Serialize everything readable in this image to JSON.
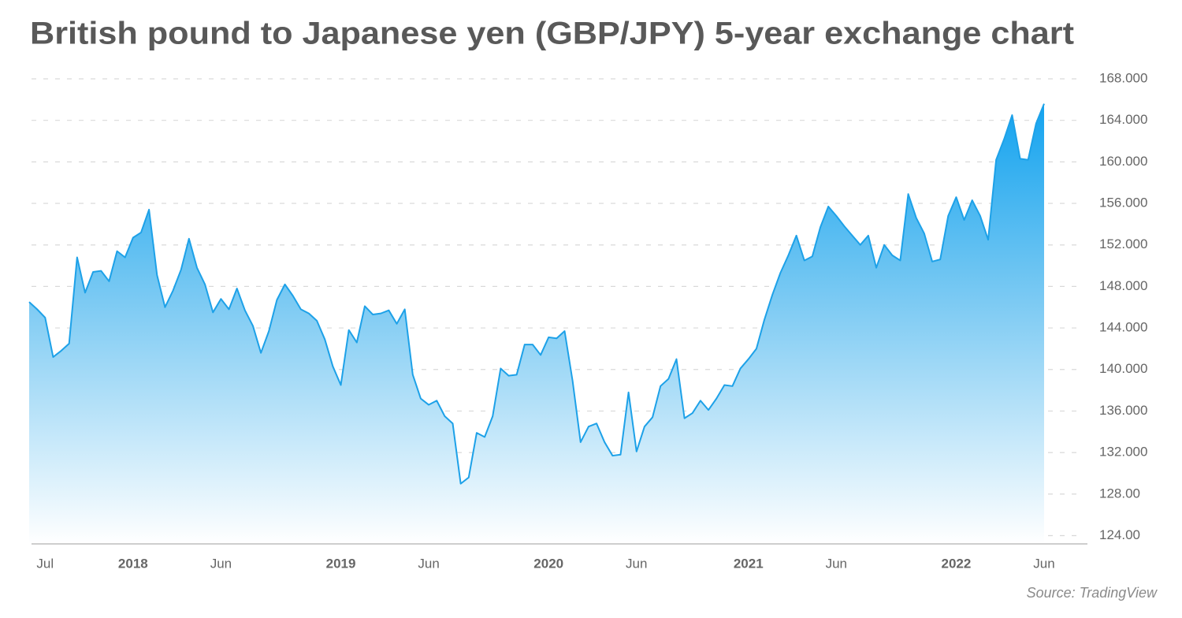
{
  "chart_data": {
    "type": "area",
    "title": "British pound to Japanese yen (GBP/JPY) 5-year exchange chart",
    "source": "Source: TradingView",
    "color": "#1da1e8",
    "grid": true,
    "categories": [
      null,
      null,
      "Jul",
      null,
      null,
      null,
      null,
      null,
      null,
      null,
      null,
      null,
      null,
      "2018",
      null,
      null,
      null,
      null,
      null,
      null,
      null,
      null,
      null,
      null,
      "Jun",
      null,
      null,
      null,
      null,
      null,
      null,
      null,
      null,
      null,
      null,
      null,
      null,
      null,
      null,
      "2019",
      null,
      null,
      null,
      null,
      null,
      null,
      null,
      null,
      null,
      null,
      "Jun",
      null,
      null,
      null,
      null,
      null,
      null,
      null,
      null,
      null,
      null,
      null,
      null,
      null,
      null,
      "2020",
      null,
      null,
      null,
      null,
      null,
      null,
      null,
      null,
      null,
      null,
      "Jun",
      null,
      null,
      null,
      null,
      null,
      null,
      null,
      null,
      null,
      null,
      null,
      null,
      null,
      "2021",
      null,
      null,
      null,
      null,
      null,
      null,
      null,
      null,
      null,
      null,
      "Jun",
      null,
      null,
      null,
      null,
      null,
      null,
      null,
      null,
      null,
      null,
      null,
      null,
      null,
      null,
      "2022",
      null,
      null,
      null,
      null,
      null,
      null,
      null,
      null,
      null,
      null,
      "Jun"
    ],
    "values": [
      146.5,
      145.8,
      145,
      141.2,
      141.8,
      142.5,
      150.8,
      147.4,
      149.4,
      149.5,
      148.5,
      151.4,
      150.8,
      152.7,
      153.2,
      155.4,
      149.1,
      146,
      147.6,
      149.6,
      152.6,
      149.8,
      148.2,
      145.5,
      146.8,
      145.8,
      147.8,
      145.7,
      144.2,
      141.6,
      143.7,
      146.7,
      148.2,
      147.1,
      145.8,
      145.4,
      144.7,
      142.9,
      140.3,
      138.5,
      143.8,
      142.6,
      146.1,
      145.3,
      145.4,
      145.7,
      144.4,
      145.8,
      139.5,
      137.2,
      136.6,
      137,
      135.5,
      134.8,
      129,
      129.6,
      133.9,
      133.5,
      135.5,
      140.1,
      139.4,
      139.5,
      142.4,
      142.4,
      141.4,
      143.1,
      143,
      143.7,
      138.9,
      133,
      134.5,
      134.8,
      133,
      131.7,
      131.8,
      137.8,
      132.1,
      134.5,
      135.4,
      138.4,
      139.1,
      141,
      135.3,
      135.8,
      137,
      136.1,
      137.2,
      138.5,
      138.4,
      140.1,
      141,
      142,
      144.8,
      147.2,
      149.3,
      151,
      152.9,
      150.5,
      150.9,
      153.7,
      155.7,
      154.8,
      153.8,
      152.9,
      152,
      152.9,
      149.8,
      152,
      151,
      150.5,
      156.9,
      154.6,
      153.1,
      150.4,
      150.6,
      154.8,
      156.6,
      154.4,
      156.3,
      154.8,
      152.5,
      160.2,
      162.2,
      164.5,
      160.3,
      160.2,
      163.7,
      165.6
    ],
    "ylim": [
      123.2,
      168
    ],
    "yticks": [
      {
        "value": 124,
        "label": "124.00"
      },
      {
        "value": 128,
        "label": "128.00"
      },
      {
        "value": 132,
        "label": "132.000"
      },
      {
        "value": 136,
        "label": "136.000"
      },
      {
        "value": 140,
        "label": "140.000"
      },
      {
        "value": 144,
        "label": "144.000"
      },
      {
        "value": 148,
        "label": "148.000"
      },
      {
        "value": 152,
        "label": "152.000"
      },
      {
        "value": 156,
        "label": "156.000"
      },
      {
        "value": 160,
        "label": "160.000"
      },
      {
        "value": 164,
        "label": "164.000"
      },
      {
        "value": 168,
        "label": "168.000"
      }
    ]
  }
}
